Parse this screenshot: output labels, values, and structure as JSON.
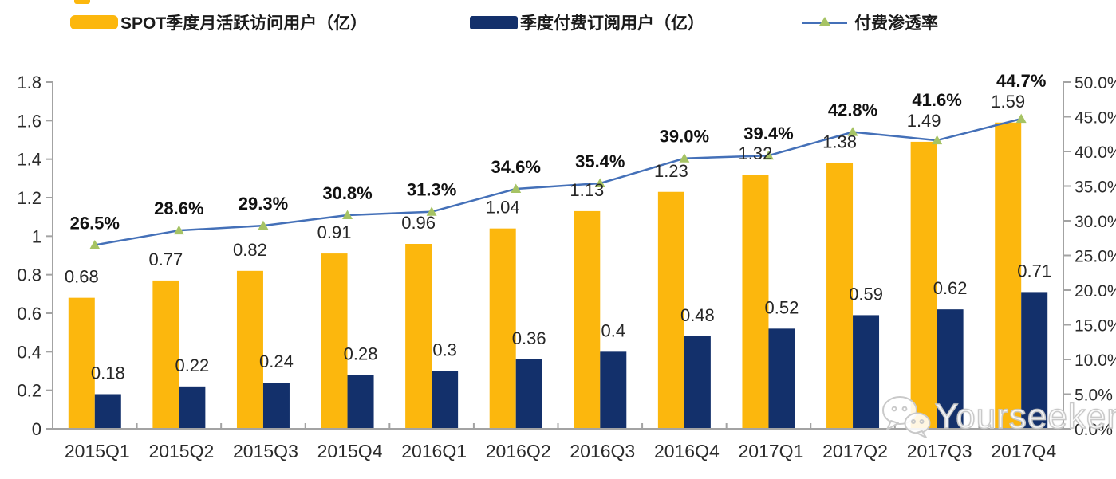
{
  "legend": {
    "items": [
      {
        "label": "SPOT季度月活跃访问用户（亿）",
        "type": "bar",
        "swatch_color": "#FCB70D"
      },
      {
        "label": "季度付费订阅用户（亿）",
        "type": "bar",
        "swatch_color": "#13306B"
      },
      {
        "label": "付费渗透率",
        "type": "line",
        "line_color": "#4470B8",
        "marker_color": "#A6C364"
      }
    ]
  },
  "chart_data": {
    "type": "bar",
    "subtype": "grouped-bars-with-line-combo",
    "grid": false,
    "legend_position": "top",
    "categories": [
      "2015Q1",
      "2015Q2",
      "2015Q3",
      "2015Q4",
      "2016Q1",
      "2016Q2",
      "2016Q3",
      "2016Q4",
      "2017Q1",
      "2017Q2",
      "2017Q3",
      "2017Q4"
    ],
    "series": [
      {
        "name": "SPOT季度月活跃访问用户（亿）",
        "type": "bar",
        "axis": "left",
        "color": "#FCB70D",
        "values": [
          0.68,
          0.77,
          0.82,
          0.91,
          0.96,
          1.04,
          1.13,
          1.23,
          1.32,
          1.38,
          1.49,
          1.59
        ],
        "labels": [
          "0.68",
          "0.77",
          "0.82",
          "0.91",
          "0.96",
          "1.04",
          "1.13",
          "1.23",
          "1.32",
          "1.38",
          "1.49",
          "1.59"
        ]
      },
      {
        "name": "季度付费订阅用户（亿）",
        "type": "bar",
        "axis": "left",
        "color": "#13306B",
        "values": [
          0.18,
          0.22,
          0.24,
          0.28,
          0.3,
          0.36,
          0.4,
          0.48,
          0.52,
          0.59,
          0.62,
          0.71
        ],
        "labels": [
          "0.18",
          "0.22",
          "0.24",
          "0.28",
          "0.3",
          "0.36",
          "0.4",
          "0.48",
          "0.52",
          "0.59",
          "0.62",
          "0.71"
        ]
      },
      {
        "name": "付费渗透率",
        "type": "line",
        "axis": "right",
        "color": "#4470B8",
        "marker": "triangle-up",
        "marker_color": "#A6C364",
        "values": [
          26.5,
          28.6,
          29.3,
          30.8,
          31.3,
          34.6,
          35.4,
          39.0,
          39.4,
          42.8,
          41.6,
          44.7
        ],
        "labels": [
          "26.5%",
          "28.6%",
          "29.3%",
          "30.8%",
          "31.3%",
          "34.6%",
          "35.4%",
          "39.0%",
          "39.4%",
          "42.8%",
          "41.6%",
          "44.7%"
        ]
      }
    ],
    "left_axis": {
      "min": 0,
      "max": 1.8,
      "tick_step": 0.2,
      "tick_labels": [
        "0",
        "0.2",
        "0.4",
        "0.6",
        "0.8",
        "1",
        "1.2",
        "1.4",
        "1.6",
        "1.8"
      ]
    },
    "right_axis": {
      "min": 0,
      "max": 50,
      "tick_step": 5,
      "tick_labels": [
        "0.0%",
        "5.0%",
        "10.0%",
        "15.0%",
        "20.0%",
        "25.0%",
        "30.0%",
        "35.0%",
        "40.0%",
        "45.0%",
        "50.0%"
      ]
    },
    "axis_color": "#A3A3A3",
    "label_color": "#262626"
  },
  "watermark": {
    "icon": "wechat-icon",
    "text": "Yourseeker"
  }
}
